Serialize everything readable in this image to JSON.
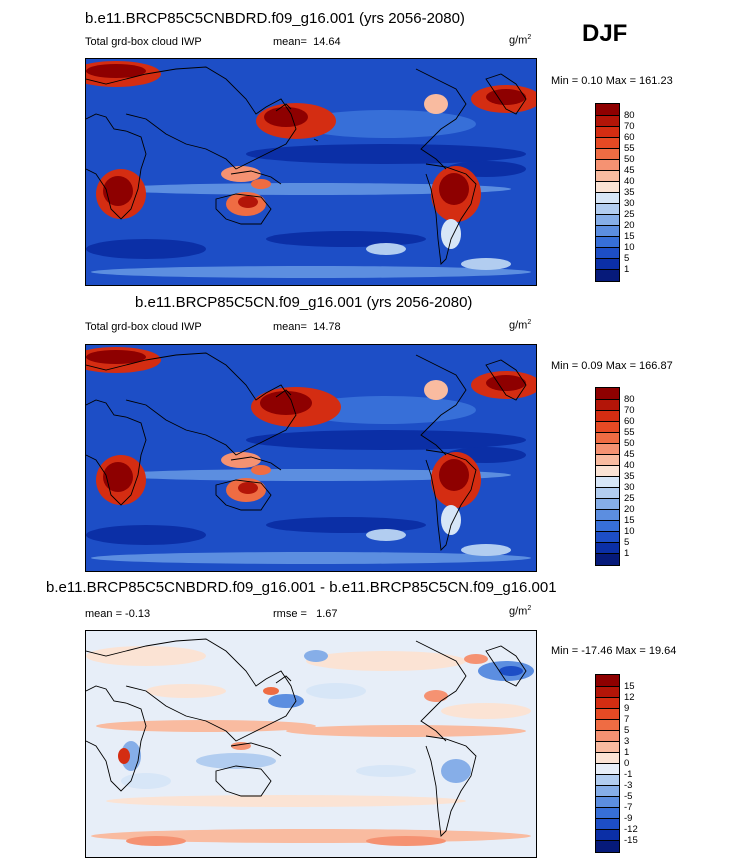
{
  "season": "DJF",
  "panels": [
    {
      "title": "b.e11.BRCP85C5CNBDRD.f09_g16.001 (yrs 2056-2080)",
      "left_label": "Total grd-box cloud IWP",
      "stat_label": "mean=",
      "stat_value": "14.64",
      "units_base": "g/m",
      "units_exp": "2",
      "minmax": "Min =   0.10 Max = 161.23",
      "levels": [
        "80",
        "70",
        "60",
        "55",
        "50",
        "45",
        "40",
        "35",
        "30",
        "25",
        "20",
        "15",
        "10",
        "5",
        "1"
      ],
      "colors": [
        "#8e0000",
        "#b31508",
        "#d42d12",
        "#e64a24",
        "#ef6c43",
        "#f59272",
        "#f9bba0",
        "#fbe3d4",
        "#d7e6f7",
        "#b2cdf0",
        "#86aee8",
        "#5c8ee0",
        "#376fd8",
        "#1d4ec6",
        "#0b2fa6",
        "#061a7a"
      ]
    },
    {
      "title": "b.e11.BRCP85C5CN.f09_g16.001 (yrs 2056-2080)",
      "left_label": "Total grd-box cloud IWP",
      "stat_label": "mean=",
      "stat_value": "14.78",
      "units_base": "g/m",
      "units_exp": "2",
      "minmax": "Min =   0.09 Max = 166.87",
      "levels": [
        "80",
        "70",
        "60",
        "55",
        "50",
        "45",
        "40",
        "35",
        "30",
        "25",
        "20",
        "15",
        "10",
        "5",
        "1"
      ],
      "colors": [
        "#8e0000",
        "#b31508",
        "#d42d12",
        "#e64a24",
        "#ef6c43",
        "#f59272",
        "#f9bba0",
        "#fbe3d4",
        "#d7e6f7",
        "#b2cdf0",
        "#86aee8",
        "#5c8ee0",
        "#376fd8",
        "#1d4ec6",
        "#0b2fa6",
        "#061a7a"
      ]
    },
    {
      "title": "b.e11.BRCP85C5CNBDRD.f09_g16.001 - b.e11.BRCP85C5CN.f09_g16.001",
      "left_label": "mean =   -0.13",
      "stat_label": "rmse =",
      "stat_value": "1.67",
      "units_base": "g/m",
      "units_exp": "2",
      "minmax": "Min = -17.46 Max =  19.64",
      "levels": [
        "15",
        "12",
        "9",
        "7",
        "5",
        "3",
        "1",
        "0",
        "-1",
        "-3",
        "-5",
        "-7",
        "-9",
        "-12",
        "-15"
      ],
      "colors": [
        "#8e0000",
        "#b31508",
        "#d42d12",
        "#e64a24",
        "#ef6c43",
        "#f59272",
        "#f9bba0",
        "#fbe3d4",
        "#e7eef8",
        "#b2cdf0",
        "#86aee8",
        "#5c8ee0",
        "#376fd8",
        "#1d4ec6",
        "#0b2fa6",
        "#061a7a"
      ]
    }
  ],
  "chart_data": {
    "type": "heatmap",
    "variable": "Total grd-box cloud IWP",
    "units": "g/m2",
    "season": "DJF",
    "maps": [
      {
        "case": "b.e11.BRCP85C5CNBDRD.f09_g16.001 (yrs 2056-2080)",
        "mean": 14.64,
        "min": 0.1,
        "max": 161.23
      },
      {
        "case": "b.e11.BRCP85C5CN.f09_g16.001 (yrs 2056-2080)",
        "mean": 14.78,
        "min": 0.09,
        "max": 166.87
      },
      {
        "case": "b.e11.BRCP85C5CNBDRD.f09_g16.001 - b.e11.BRCP85C5CN.f09_g16.001",
        "mean": -0.13,
        "rmse": 1.67,
        "min": -17.46,
        "max": 19.64
      }
    ]
  }
}
